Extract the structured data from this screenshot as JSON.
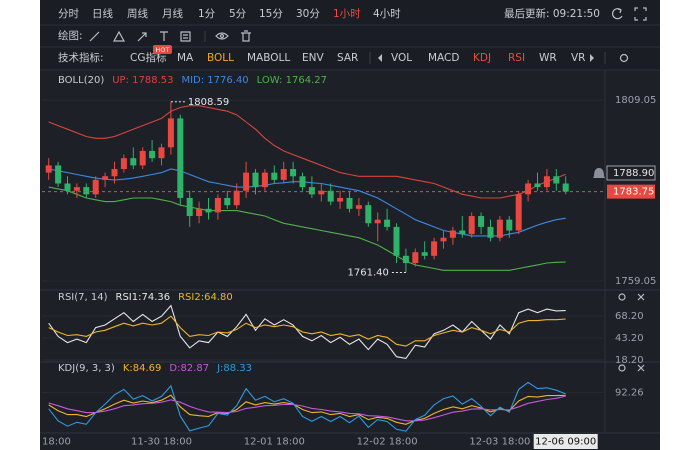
{
  "toolbar": {
    "periods": [
      "分时",
      "日线",
      "周线",
      "月线",
      "1分",
      "5分",
      "15分",
      "30分",
      "1小时",
      "4小时"
    ],
    "last_update": "最后更新: 09:21:50",
    "draw_label": "绘图:",
    "indicator_label": "技术指标:",
    "indicators": [
      "CG指标",
      "MA",
      "BOLL",
      "MABOLL",
      "ENV",
      "SAR",
      "VOL",
      "MACD",
      "KDJ",
      "RSI",
      "WR",
      "VR"
    ],
    "hot_badge": "HOT"
  },
  "chart_data": [
    {
      "type": "candlestick",
      "title": "BOLL(20)",
      "open": [
        1789,
        1791,
        1786,
        1784,
        1785,
        1783,
        1787,
        1788,
        1790,
        1793,
        1791,
        1795,
        1793,
        1796,
        1804,
        1782,
        1777,
        1779,
        1778,
        1782,
        1780,
        1784,
        1789,
        1785,
        1789,
        1787,
        1790,
        1788,
        1785,
        1783,
        1784,
        1781,
        1782,
        1779,
        1780,
        1775,
        1776,
        1774,
        1766,
        1764,
        1767,
        1766,
        1770,
        1771,
        1773,
        1772,
        1777,
        1774,
        1771,
        1776,
        1773,
        1783,
        1786,
        1785,
        1788,
        1786
      ],
      "high": [
        1793,
        1792,
        1788,
        1786,
        1786,
        1788,
        1789,
        1792,
        1794,
        1796,
        1796,
        1798,
        1797,
        1808.59,
        1805,
        1784,
        1781,
        1782,
        1783,
        1784,
        1786,
        1792,
        1790,
        1790,
        1791,
        1792,
        1792,
        1789,
        1788,
        1786,
        1786,
        1784,
        1784,
        1782,
        1781,
        1778,
        1779,
        1775,
        1768,
        1768,
        1770,
        1771,
        1773,
        1774,
        1777,
        1778,
        1778,
        1776,
        1777,
        1777,
        1784,
        1787,
        1789,
        1790,
        1790,
        1788
      ],
      "low": [
        1787,
        1785,
        1783,
        1782,
        1782,
        1782,
        1785,
        1786,
        1789,
        1790,
        1790,
        1792,
        1791,
        1794,
        1780,
        1774,
        1775,
        1776,
        1776,
        1779,
        1779,
        1782,
        1783,
        1784,
        1786,
        1786,
        1786,
        1784,
        1782,
        1781,
        1780,
        1779,
        1778,
        1777,
        1774,
        1770,
        1773,
        1764,
        1761.4,
        1763,
        1765,
        1765,
        1768,
        1769,
        1771,
        1771,
        1772,
        1770,
        1770,
        1771,
        1772,
        1781,
        1784,
        1784,
        1784,
        1783
      ],
      "close": [
        1791,
        1786,
        1784,
        1785,
        1783,
        1787,
        1788,
        1790,
        1793,
        1791,
        1795,
        1793,
        1796,
        1804,
        1782,
        1777,
        1779,
        1778,
        1782,
        1780,
        1784,
        1789,
        1785,
        1789,
        1787,
        1790,
        1788,
        1785,
        1783,
        1784,
        1781,
        1782,
        1779,
        1780,
        1775,
        1776,
        1774,
        1766,
        1764,
        1767,
        1766,
        1770,
        1771,
        1773,
        1772,
        1777,
        1774,
        1771,
        1776,
        1773,
        1783,
        1786,
        1785,
        1788,
        1786,
        1783.75
      ],
      "up_color": "#e8483f",
      "down_color": "#2fb36a",
      "series": [
        {
          "name": "UP: 1788.53",
          "color": "#d8453b",
          "values": [
            1803,
            1802,
            1801,
            1800,
            1799,
            1798.5,
            1798.5,
            1799,
            1800,
            1801,
            1802,
            1803,
            1804,
            1806,
            1807,
            1807.5,
            1807.5,
            1807,
            1806.5,
            1806,
            1805,
            1803,
            1801,
            1798.5,
            1796.5,
            1795,
            1794,
            1793,
            1792,
            1791,
            1790,
            1789,
            1788.5,
            1788,
            1788,
            1788,
            1788,
            1788,
            1787.5,
            1787,
            1786.5,
            1786,
            1785,
            1784,
            1783,
            1782.5,
            1782,
            1782,
            1782,
            1782.5,
            1783,
            1784,
            1785.5,
            1786.5,
            1787.5,
            1788.53
          ]
        },
        {
          "name": "MID: 1776.40",
          "color": "#3b8ae0",
          "values": [
            1790,
            1789.5,
            1789,
            1788.5,
            1788,
            1787.5,
            1787.2,
            1787,
            1787.2,
            1787.5,
            1788,
            1788.5,
            1789,
            1790,
            1789.5,
            1788.5,
            1787.5,
            1786.5,
            1786,
            1785.5,
            1785,
            1785,
            1785.2,
            1785.5,
            1786,
            1786.2,
            1786.5,
            1786.5,
            1786.2,
            1786,
            1785.5,
            1785,
            1784.5,
            1784,
            1783,
            1782,
            1780.5,
            1779,
            1777.5,
            1776,
            1775,
            1774,
            1773,
            1772.5,
            1772,
            1771.5,
            1771.5,
            1771.5,
            1771.5,
            1772,
            1772.5,
            1773.5,
            1774.5,
            1775.3,
            1776,
            1776.4
          ]
        },
        {
          "name": "LOW: 1764.27",
          "color": "#52b04a",
          "values": [
            1785,
            1784.5,
            1784,
            1783,
            1782,
            1781.5,
            1781,
            1781,
            1781.5,
            1782,
            1782,
            1782,
            1781.5,
            1781,
            1780,
            1779.5,
            1779,
            1778.5,
            1778.5,
            1778.5,
            1778.5,
            1778,
            1777.5,
            1777,
            1776,
            1775,
            1774.5,
            1774,
            1773.5,
            1773,
            1772.5,
            1772,
            1771.5,
            1771,
            1770,
            1769,
            1767.5,
            1766,
            1764.5,
            1763.5,
            1763,
            1762.5,
            1762,
            1762,
            1762,
            1762,
            1762,
            1762,
            1762,
            1762,
            1762.5,
            1763,
            1763.5,
            1764,
            1764.2,
            1764.27
          ]
        }
      ],
      "ylim": [
        1757.1,
        1811.3
      ],
      "yticks": [
        1759.05,
        1809.05
      ],
      "current_price": 1783.75,
      "alert_price": {
        "value": 1788.9,
        "label": "1788.90"
      },
      "annotations": [
        {
          "value": 1808.59,
          "label": "1808.59"
        },
        {
          "value": 1761.4,
          "label": "1761.40"
        }
      ]
    },
    {
      "type": "line",
      "title": "RSI(7, 14)",
      "series": [
        {
          "name": "RSI1:74.36",
          "color": "#e6e6e6",
          "values": [
            60,
            45,
            38,
            42,
            38,
            55,
            58,
            65,
            72,
            62,
            70,
            62,
            68,
            80,
            45,
            32,
            40,
            38,
            50,
            45,
            56,
            70,
            52,
            65,
            58,
            64,
            58,
            45,
            40,
            46,
            38,
            44,
            36,
            42,
            30,
            42,
            36,
            22,
            20,
            35,
            33,
            48,
            52,
            58,
            50,
            62,
            52,
            42,
            58,
            48,
            72,
            76,
            72,
            76,
            74,
            74.36
          ]
        },
        {
          "name": "RSI2:64.80",
          "color": "#f0b429",
          "values": [
            55,
            50,
            46,
            47,
            45,
            50,
            52,
            56,
            60,
            57,
            60,
            58,
            60,
            68,
            55,
            45,
            47,
            46,
            50,
            49,
            53,
            60,
            55,
            58,
            56,
            58,
            56,
            50,
            48,
            50,
            46,
            48,
            45,
            47,
            42,
            46,
            44,
            36,
            34,
            40,
            40,
            46,
            49,
            52,
            50,
            55,
            52,
            48,
            53,
            50,
            60,
            63,
            63,
            64,
            64,
            64.8
          ]
        }
      ],
      "ylim": [
        18.2,
        80.7
      ],
      "yticks": [
        {
          "value": 68.2,
          "label": "68.20"
        },
        {
          "value": 43.2,
          "label": "43.20"
        },
        {
          "value": 18.2,
          "label": "18.20"
        }
      ]
    },
    {
      "type": "line",
      "title": "KDJ(9, 3, 3)",
      "series": [
        {
          "name": "K:84.69",
          "color": "#f0b429",
          "values": [
            60,
            45,
            35,
            35,
            30,
            40,
            50,
            62,
            72,
            65,
            70,
            66,
            72,
            85,
            55,
            35,
            32,
            30,
            40,
            38,
            48,
            68,
            60,
            66,
            62,
            66,
            62,
            48,
            40,
            42,
            35,
            38,
            30,
            35,
            22,
            28,
            25,
            15,
            10,
            20,
            25,
            38,
            48,
            55,
            50,
            58,
            52,
            42,
            50,
            45,
            70,
            82,
            80,
            84,
            84,
            84.69
          ]
        },
        {
          "name": "D:82.87",
          "color": "#c658dc",
          "values": [
            65,
            58,
            50,
            45,
            40,
            40,
            44,
            50,
            58,
            60,
            63,
            64,
            67,
            73,
            67,
            56,
            48,
            42,
            41,
            40,
            43,
            51,
            54,
            58,
            59,
            61,
            61,
            57,
            51,
            48,
            44,
            42,
            38,
            37,
            32,
            31,
            29,
            24,
            19,
            19,
            21,
            27,
            34,
            41,
            44,
            49,
            50,
            47,
            48,
            47,
            55,
            64,
            69,
            74,
            77,
            82.87
          ]
        },
        {
          "name": "J:88.33",
          "color": "#2f9ae0",
          "values": [
            50,
            19,
            5,
            15,
            10,
            40,
            62,
            86,
            100,
            75,
            84,
            70,
            82,
            109,
            31,
            -7,
            0,
            6,
            38,
            34,
            58,
            102,
            72,
            82,
            68,
            76,
            64,
            30,
            18,
            30,
            17,
            30,
            14,
            31,
            2,
            22,
            17,
            -3,
            -8,
            22,
            33,
            60,
            76,
            83,
            62,
            76,
            56,
            32,
            54,
            41,
            100,
            118,
            102,
            104,
            98,
            88.33
          ]
        }
      ],
      "ylim": [
        -10,
        132
      ],
      "yticks": [
        92.26
      ],
      "categories": [
        "18:00",
        null,
        null,
        null,
        null,
        null,
        null,
        null,
        null,
        null,
        null,
        null,
        "11-30 18:00",
        null,
        null,
        null,
        null,
        null,
        null,
        null,
        null,
        null,
        null,
        null,
        "12-01 18:00",
        null,
        null,
        null,
        null,
        null,
        null,
        null,
        null,
        null,
        null,
        null,
        "12-02 18:00",
        null,
        null,
        null,
        null,
        null,
        null,
        null,
        null,
        null,
        null,
        null,
        "12-03 18:00",
        null,
        null,
        null,
        null,
        null,
        null,
        "12-06 09:00"
      ]
    }
  ]
}
